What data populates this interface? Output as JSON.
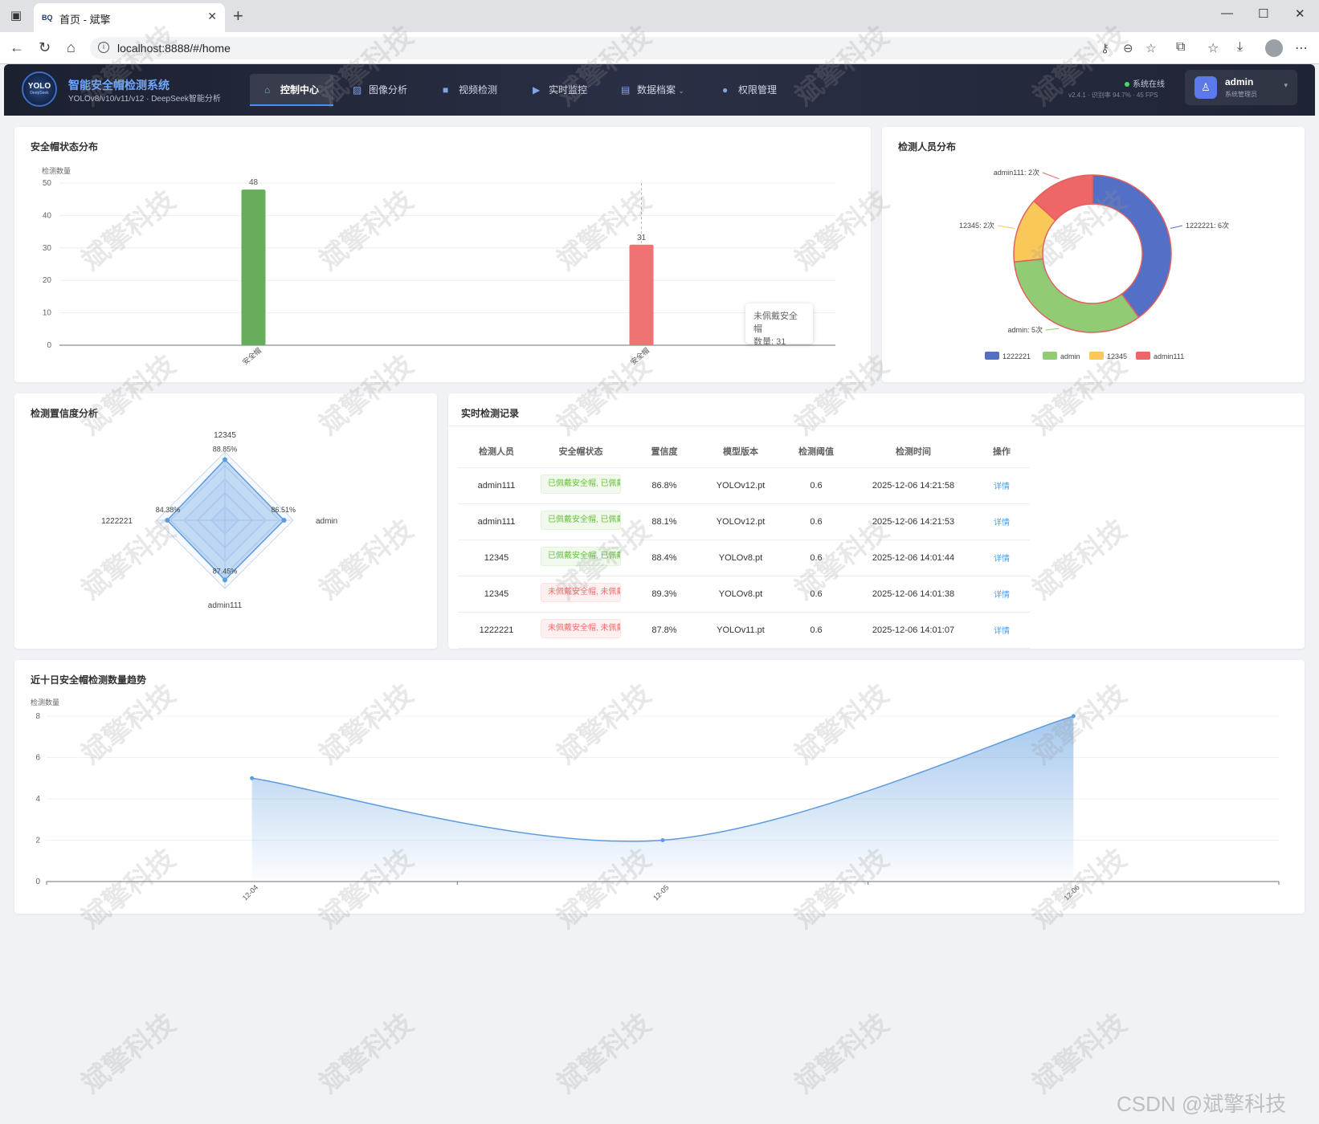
{
  "browser": {
    "tab_title": "首页 - 斌擎",
    "favicon": "BQ",
    "url": "localhost:8888/#/home"
  },
  "header": {
    "logo_main": "YOLO",
    "logo_sub": "DeepSeek",
    "title": "智能安全帽检测系统",
    "subtitle": "YOLOv8/v10/v11/v12 · DeepSeek智能分析",
    "nav": [
      {
        "label": "控制中心",
        "icon": "home-icon",
        "active": true
      },
      {
        "label": "图像分析",
        "icon": "image-icon"
      },
      {
        "label": "视频检测",
        "icon": "video-icon"
      },
      {
        "label": "实时监控",
        "icon": "camera-icon"
      },
      {
        "label": "数据档案",
        "icon": "document-icon"
      },
      {
        "label": "权限管理",
        "icon": "user-icon"
      }
    ],
    "status": "系统在线",
    "status_meta": "v2.4.1 · 识别率 94.7% · 45 FPS",
    "user_name": "admin",
    "user_role": "系统管理员"
  },
  "bar_card": {
    "title": "安全帽状态分布",
    "chart_data": {
      "type": "bar",
      "ylabel": "检测数量",
      "ylim": [
        0,
        50
      ],
      "yticks": [
        0,
        10,
        20,
        30,
        40,
        50
      ],
      "categories": [
        "已佩戴安全帽",
        "未佩戴安全帽"
      ],
      "category_labels_visible": [
        "安全帽",
        "安全帽"
      ],
      "values": [
        48,
        31
      ],
      "colors": [
        "#67ad5b",
        "#f07373"
      ]
    },
    "tooltip": {
      "title": "未佩戴安全帽",
      "line": "数量: 31"
    }
  },
  "pie_card": {
    "title": "检测人员分布",
    "chart_data": {
      "type": "pie",
      "slices": [
        {
          "name": "1222221",
          "value": 6,
          "color": "#5470c6",
          "label": "1222221: 6次"
        },
        {
          "name": "admin",
          "value": 5,
          "color": "#91cc75",
          "label": "admin: 5次"
        },
        {
          "name": "12345",
          "value": 2,
          "color": "#fac858",
          "label": "12345: 2次"
        },
        {
          "name": "admin111",
          "value": 2,
          "color": "#ee6666",
          "label": "admin111: 2次"
        }
      ]
    }
  },
  "radar_card": {
    "title": "检测置信度分析",
    "chart_data": {
      "type": "radar",
      "max": 100,
      "indicators": [
        {
          "name": "12345",
          "value": 88.85,
          "label": "88.85%"
        },
        {
          "name": "admin",
          "value": 86.51,
          "label": "86.51%"
        },
        {
          "name": "admin111",
          "value": 87.45,
          "label": "87.45%"
        },
        {
          "name": "1222221",
          "value": 84.38,
          "label": "84.38%"
        }
      ]
    }
  },
  "records": {
    "title": "实时检测记录",
    "columns": [
      "检测人员",
      "安全帽状态",
      "置信度",
      "模型版本",
      "检测阈值",
      "检测时间",
      "操作"
    ],
    "rows": [
      {
        "person": "admin111",
        "status": "已佩戴安全帽, 已佩戴",
        "ok": true,
        "conf": "86.8%",
        "model": "YOLOv12.pt",
        "thr": "0.6",
        "time": "2025-12-06 14:21:58",
        "action": "详情"
      },
      {
        "person": "admin111",
        "status": "已佩戴安全帽, 已佩戴",
        "ok": true,
        "conf": "88.1%",
        "model": "YOLOv12.pt",
        "thr": "0.6",
        "time": "2025-12-06 14:21:53",
        "action": "详情"
      },
      {
        "person": "12345",
        "status": "已佩戴安全帽, 已佩戴",
        "ok": true,
        "conf": "88.4%",
        "model": "YOLOv8.pt",
        "thr": "0.6",
        "time": "2025-12-06 14:01:44",
        "action": "详情"
      },
      {
        "person": "12345",
        "status": "未佩戴安全帽, 未佩戴",
        "ok": false,
        "conf": "89.3%",
        "model": "YOLOv8.pt",
        "thr": "0.6",
        "time": "2025-12-06 14:01:38",
        "action": "详情"
      },
      {
        "person": "1222221",
        "status": "未佩戴安全帽, 未佩戴",
        "ok": false,
        "conf": "87.8%",
        "model": "YOLOv11.pt",
        "thr": "0.6",
        "time": "2025-12-06 14:01:07",
        "action": "详情"
      }
    ]
  },
  "trend_card": {
    "title": "近十日安全帽检测数量趋势",
    "chart_data": {
      "type": "area",
      "ylabel": "检测数量",
      "ylim": [
        0,
        8
      ],
      "yticks": [
        0,
        2,
        4,
        6,
        8
      ],
      "x": [
        "12-04",
        "12-05",
        "12-06"
      ],
      "values": [
        5,
        2,
        8
      ],
      "color": "#5b9be0"
    }
  },
  "watermark": "斌擎科技",
  "csdn_mark": "CSDN @斌擎科技"
}
